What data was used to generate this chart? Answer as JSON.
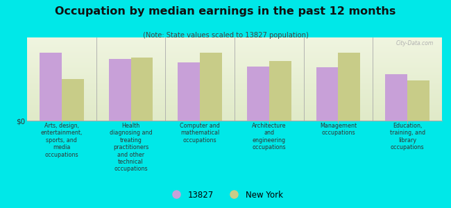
{
  "title": "Occupation by median earnings in the past 12 months",
  "subtitle": "(Note: State values scaled to 13827 population)",
  "background_color": "#00e8e8",
  "plot_bg_top": "#f0f5e0",
  "plot_bg_bottom": "#e0eac8",
  "bar_color_13827": "#c8a0d8",
  "bar_color_ny": "#c8cc88",
  "categories": [
    "Arts, design,\nentertainment,\nsports, and\nmedia\noccupations",
    "Health\ndiagnosing and\ntreating\npractitioners\nand other\ntechnical\noccupations",
    "Computer and\nmathematical\noccupations",
    "Architecture\nand\nengineering\noccupations",
    "Management\noccupations",
    "Education,\ntraining, and\nlibrary\noccupations"
  ],
  "values_13827": [
    0.82,
    0.74,
    0.7,
    0.65,
    0.64,
    0.56
  ],
  "values_ny": [
    0.5,
    0.76,
    0.82,
    0.72,
    0.82,
    0.48
  ],
  "ylabel": "$0",
  "legend_labels": [
    "13827",
    "New York"
  ],
  "watermark": "City-Data.com"
}
